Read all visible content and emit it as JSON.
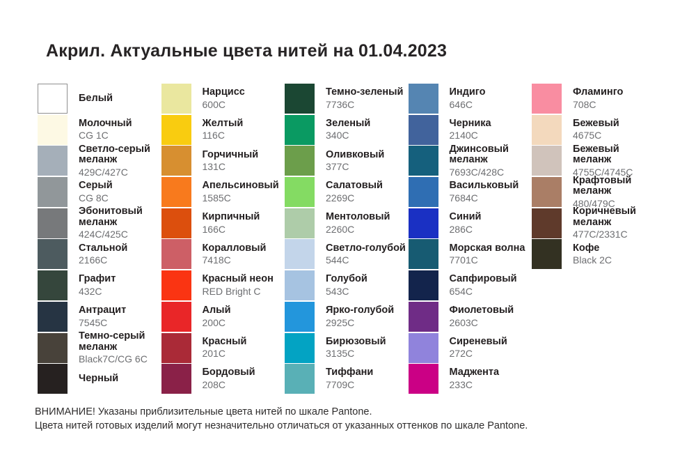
{
  "title": "Акрил. Актуальные цвета нитей на 01.04.2023",
  "footer": {
    "line1": "ВНИМАНИЕ! Указаны приблизительные цвета нитей по шкале Pantone.",
    "line2": "Цвета нитей готовых изделий могут незначительно отличаться от указанных оттенков по шкале Pantone."
  },
  "columns": [
    {
      "items": [
        {
          "name": "Белый",
          "code": "",
          "color": "#FFFFFF",
          "border": true
        },
        {
          "name": "Молочный",
          "code": "CG 1C",
          "color": "#FDF9E4"
        },
        {
          "name": "Светло-серый\nмеланж",
          "code": "429C/427C",
          "color": "#A5AFB9"
        },
        {
          "name": "Серый",
          "code": "CG 8C",
          "color": "#91979A"
        },
        {
          "name": "Эбонитовый\nмеланж",
          "code": "424C/425C",
          "color": "#77797B"
        },
        {
          "name": "Стальной",
          "code": "2166C",
          "color": "#4D5B5F"
        },
        {
          "name": "Графит",
          "code": "432C",
          "color": "#35463C"
        },
        {
          "name": "Антрацит",
          "code": "7545C",
          "color": "#263443"
        },
        {
          "name": "Темно-серый\nмеланж",
          "code": "Black7C/CG 6C",
          "color": "#48423A"
        },
        {
          "name": "Черный",
          "code": "",
          "color": "#262120"
        }
      ]
    },
    {
      "items": [
        {
          "name": "Нарцисс",
          "code": "600C",
          "color": "#EAE79F"
        },
        {
          "name": "Желтый",
          "code": "116C",
          "color": "#F9CC10"
        },
        {
          "name": "Горчичный",
          "code": "131C",
          "color": "#D78F30"
        },
        {
          "name": "Апельсиновый",
          "code": "1585C",
          "color": "#F87A1D"
        },
        {
          "name": "Кирпичный",
          "code": "166C",
          "color": "#DC4F0D"
        },
        {
          "name": "Коралловый",
          "code": "7418C",
          "color": "#CD5F66"
        },
        {
          "name": "Красный неон",
          "code": "RED Bright C",
          "color": "#FA3412"
        },
        {
          "name": "Алый",
          "code": "200C",
          "color": "#E92628"
        },
        {
          "name": "Красный",
          "code": "201C",
          "color": "#AA2A37"
        },
        {
          "name": "Бордовый",
          "code": "208C",
          "color": "#8A2148"
        }
      ]
    },
    {
      "items": [
        {
          "name": "Темно-зеленый",
          "code": "7736C",
          "color": "#1B4733"
        },
        {
          "name": "Зеленый",
          "code": "340C",
          "color": "#0A9A62"
        },
        {
          "name": "Оливковый",
          "code": "377C",
          "color": "#6C9E4B"
        },
        {
          "name": "Салатовый",
          "code": "2269C",
          "color": "#84DB63"
        },
        {
          "name": "Ментоловый",
          "code": "2260C",
          "color": "#AECCA9"
        },
        {
          "name": "Светло-голубой",
          "code": "544C",
          "color": "#C3D5EA"
        },
        {
          "name": "Голубой",
          "code": "543C",
          "color": "#A6C3E1"
        },
        {
          "name": "Ярко-голубой",
          "code": "2925C",
          "color": "#2396DC"
        },
        {
          "name": "Бирюзовый",
          "code": "3135C",
          "color": "#03A3C3"
        },
        {
          "name": "Тиффани",
          "code": "7709C",
          "color": "#59B0B6"
        }
      ]
    },
    {
      "items": [
        {
          "name": "Индиго",
          "code": "646C",
          "color": "#5585B2"
        },
        {
          "name": "Черника",
          "code": "2140C",
          "color": "#41639C"
        },
        {
          "name": "Джинсовый\nмеланж",
          "code": "7693C/428C",
          "color": "#15607D"
        },
        {
          "name": "Васильковый",
          "code": "7684C",
          "color": "#2F6EB3"
        },
        {
          "name": "Синий",
          "code": "286C",
          "color": "#1A30C3"
        },
        {
          "name": "Морская волна",
          "code": "7701C",
          "color": "#175B72"
        },
        {
          "name": "Сапфировый",
          "code": "654C",
          "color": "#13244C"
        },
        {
          "name": "Фиолетовый",
          "code": "2603C",
          "color": "#6F2C86"
        },
        {
          "name": "Сиреневый",
          "code": "272C",
          "color": "#9083DC"
        },
        {
          "name": "Маджента",
          "code": "233C",
          "color": "#CB0085"
        }
      ]
    },
    {
      "items": [
        {
          "name": "Фламинго",
          "code": "708C",
          "color": "#F98DA1"
        },
        {
          "name": "Бежевый",
          "code": "4675C",
          "color": "#F3D9BD"
        },
        {
          "name": "Бежевый\nмеланж",
          "code": "4755C/4745C",
          "color": "#D0C3BB"
        },
        {
          "name": "Крафтовый меланж",
          "code": "480/479C",
          "color": "#AA7E66"
        },
        {
          "name": "Коричневый\nмеланж",
          "code": "477C/2331C",
          "color": "#5F3A2B"
        },
        {
          "name": "Кофе",
          "code": "Black 2C",
          "color": "#333122"
        }
      ]
    }
  ]
}
